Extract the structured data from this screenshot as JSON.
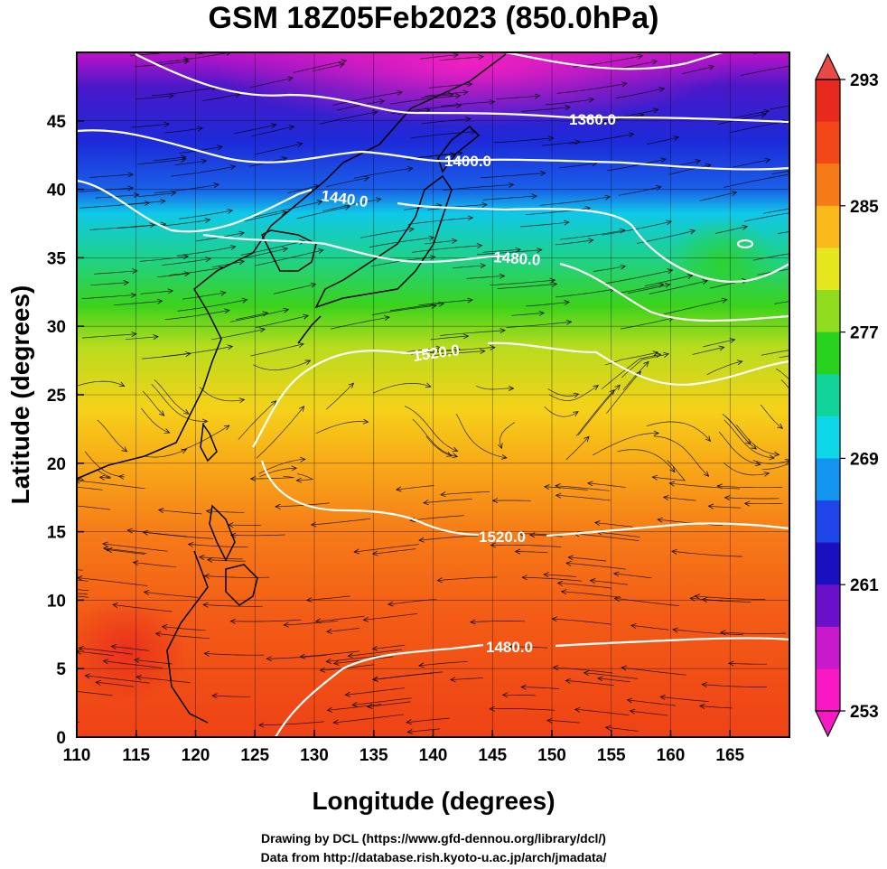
{
  "title": "GSM 18Z05Feb2023 (850.0hPa)",
  "map": {
    "x_axis": {
      "label": "Longitude (degrees)",
      "ticks": [
        "110",
        "115",
        "120",
        "125",
        "130",
        "135",
        "140",
        "145",
        "150",
        "155",
        "160",
        "165"
      ]
    },
    "y_axis": {
      "label": "Latitude  (degrees)",
      "ticks": [
        "0",
        "5",
        "10",
        "15",
        "20",
        "25",
        "30",
        "35",
        "40",
        "45"
      ]
    },
    "contour_labels": [
      "1360.0",
      "1400.0",
      "1440.0",
      "1480.0",
      "1520.0",
      "1520.0",
      "1480.0"
    ],
    "colorbar": {
      "ticks": [
        "293",
        "285",
        "277",
        "269",
        "261",
        "253"
      ],
      "colors_top_to_bottom": [
        "#e82a1e",
        "#f24818",
        "#f77a18",
        "#fbb81a",
        "#e6e61e",
        "#8fdc20",
        "#28d21e",
        "#10d49a",
        "#0ed8e8",
        "#1496f0",
        "#1f46ea",
        "#1b10c0",
        "#6a10c8",
        "#c81acc",
        "#f818c4"
      ]
    }
  },
  "credits": {
    "line1": "Drawing by DCL (https://www.gfd-dennou.org/library/dcl/)",
    "line2": "Data from http://database.rish.kyoto-u.ac.jp/arch/jmadata/"
  }
}
